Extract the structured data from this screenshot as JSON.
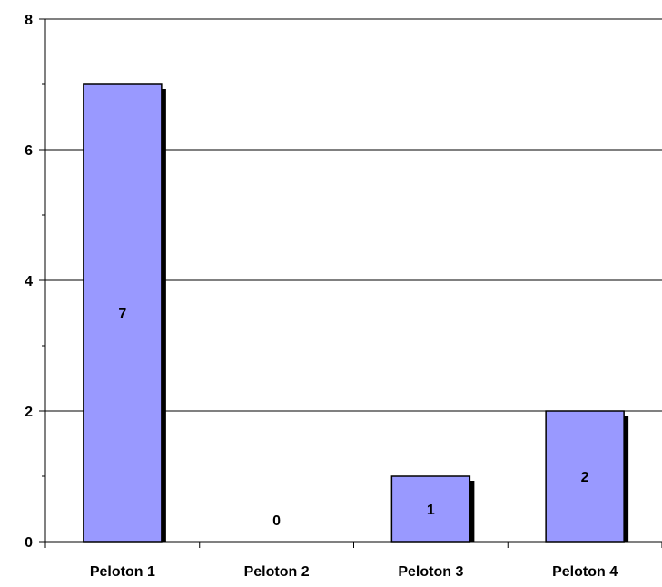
{
  "chart_data": {
    "type": "bar",
    "categories": [
      "Peloton 1",
      "Peloton 2",
      "Peloton 3",
      "Peloton 4"
    ],
    "values": [
      7,
      0,
      1,
      2
    ],
    "data_labels": [
      "7",
      "0",
      "1",
      "2"
    ],
    "title": "",
    "xlabel": "",
    "ylabel": "",
    "ylim": [
      0,
      8
    ],
    "y_ticks": [
      0,
      2,
      4,
      6,
      8
    ],
    "y_tick_labels": [
      "0",
      "2",
      "4",
      "6",
      "8"
    ],
    "grid": true,
    "legend": "none",
    "colors": {
      "bar_fill": "#9999ff",
      "bar_stroke": "#000000",
      "bar_shadow": "#000000",
      "grid": "#000000",
      "axis": "#000000"
    }
  }
}
